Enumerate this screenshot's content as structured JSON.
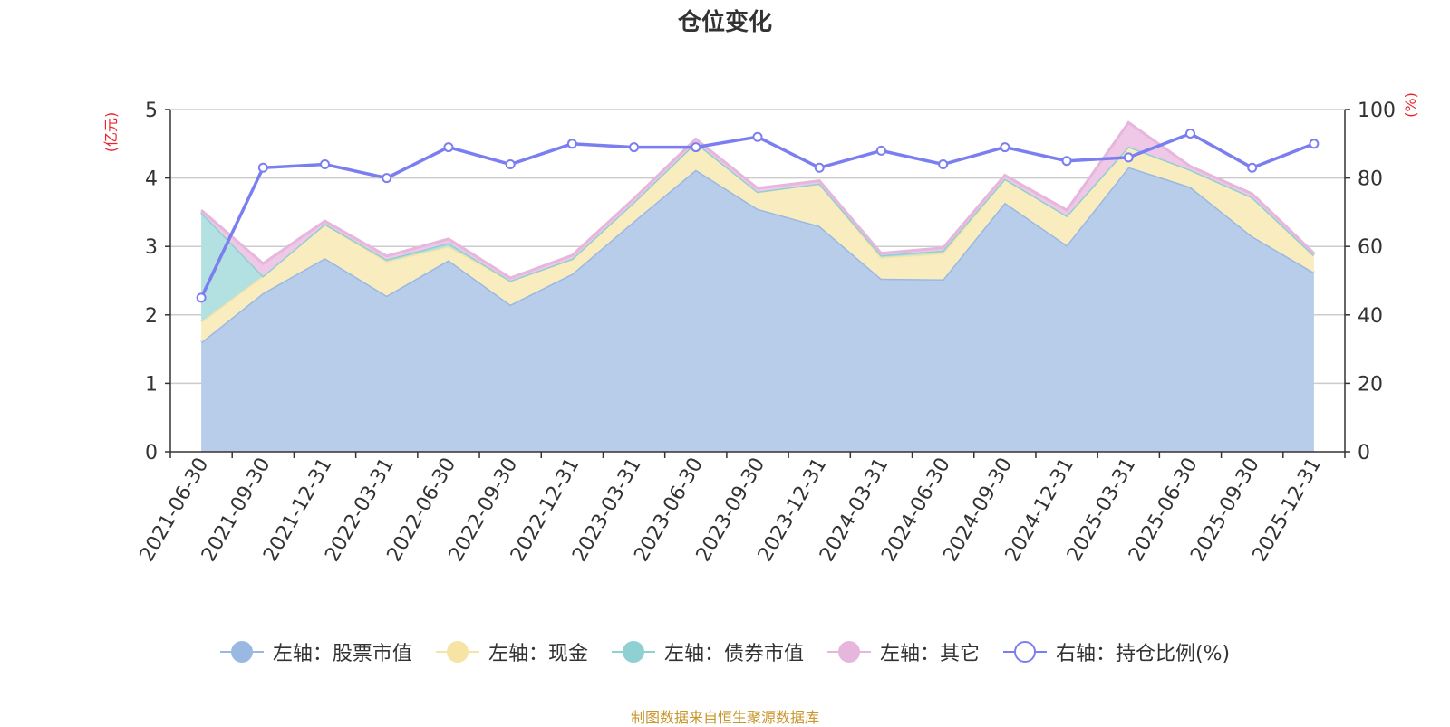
{
  "chart_data": {
    "type": "area",
    "title": "仓位变化",
    "categories": [
      "2021-06-30",
      "2021-09-30",
      "2021-12-31",
      "2022-03-31",
      "2022-06-30",
      "2022-09-30",
      "2022-12-31",
      "2023-03-31",
      "2023-06-30",
      "2023-09-30",
      "2023-12-31",
      "2024-03-31",
      "2024-06-30",
      "2024-09-30",
      "2024-12-31",
      "2025-03-31",
      "2025-06-30",
      "2025-09-30",
      "2025-12-31"
    ],
    "ylabel_left": "(亿元)",
    "ylabel_right": "(%)",
    "ylim_left": [
      0,
      5
    ],
    "ylim_right": [
      0,
      100
    ],
    "left_ticks": [
      "0",
      "1",
      "2",
      "3",
      "4",
      "5"
    ],
    "right_ticks": [
      "0",
      "20",
      "40",
      "60",
      "80",
      "100"
    ],
    "stacked": true,
    "grid": true,
    "legend_position": "bottom",
    "series": [
      {
        "name": "左轴：股票市值",
        "axis": "left",
        "color": "#9ab8e2",
        "fill": "#b7cdea",
        "values": [
          1.6,
          2.32,
          2.83,
          2.28,
          2.8,
          2.15,
          2.6,
          3.37,
          4.12,
          3.55,
          3.3,
          2.53,
          2.52,
          3.64,
          3.02,
          4.16,
          3.87,
          3.15,
          2.62
        ]
      },
      {
        "name": "左轴：现金",
        "axis": "left",
        "color": "#f6e4a4",
        "fill": "#f9edbf",
        "values": [
          0.3,
          0.25,
          0.5,
          0.5,
          0.2,
          0.35,
          0.22,
          0.28,
          0.4,
          0.25,
          0.62,
          0.31,
          0.38,
          0.35,
          0.43,
          0.3,
          0.25,
          0.57,
          0.25
        ]
      },
      {
        "name": "左轴：债券市值",
        "axis": "left",
        "color": "#8fd0d2",
        "fill": "#b3e0e0",
        "values": [
          1.6,
          0.0,
          0.0,
          0.03,
          0.05,
          0.0,
          0.0,
          0.0,
          0.0,
          0.0,
          0.0,
          0.03,
          0.04,
          0.0,
          0.0,
          0.0,
          0.0,
          0.0,
          0.0
        ]
      },
      {
        "name": "左轴：其它",
        "axis": "left",
        "color": "#e6b6dc",
        "fill": "#eec8e6",
        "values": [
          0.03,
          0.18,
          0.04,
          0.05,
          0.06,
          0.04,
          0.05,
          0.05,
          0.05,
          0.05,
          0.04,
          0.03,
          0.04,
          0.05,
          0.08,
          0.35,
          0.05,
          0.05,
          0.03
        ]
      },
      {
        "name": "右轴：持仓比例(%)",
        "axis": "right",
        "color": "#7b7ef0",
        "values": [
          45,
          83,
          84,
          80,
          89,
          84,
          90,
          89,
          89,
          92,
          83,
          88,
          84,
          89,
          85,
          86,
          93,
          83,
          90
        ]
      }
    ]
  },
  "footer": "制图数据来自恒生聚源数据库",
  "colors": {
    "axis": "#333333",
    "grid": "#cccccc",
    "ylabel": "#e8262d",
    "footer": "#c8962a"
  }
}
